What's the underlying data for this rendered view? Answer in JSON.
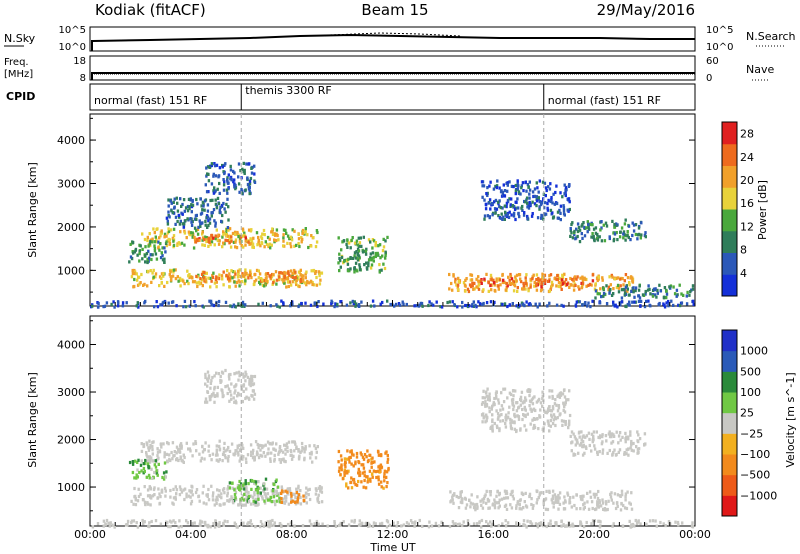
{
  "header": {
    "station": "Kodiak (fitACF)",
    "beam": "Beam 15",
    "date": "29/May/2016"
  },
  "top_panels": {
    "nsky_label": "N.Sky",
    "nsky_ticks": [
      "10^5",
      "10^0"
    ],
    "nsearch_label": "N.Search",
    "nsearch_ticks": [
      "10^5",
      "10^0"
    ],
    "freq_label": [
      "Freq.",
      "[MHz]"
    ],
    "freq_ticks": [
      "18",
      "8"
    ],
    "nave_label": "Nave",
    "nave_ticks": [
      "60",
      "0"
    ],
    "cpid_label": "CPID",
    "cpid_segments": [
      {
        "label": "normal (fast) 151 RF",
        "start_h": 0,
        "end_h": 6
      },
      {
        "label": "themis 3300 RF",
        "start_h": 6,
        "end_h": 18
      },
      {
        "label": "normal (fast) 151 RF",
        "start_h": 18,
        "end_h": 24
      }
    ]
  },
  "colors": {
    "power": [
      "#1430d8",
      "#2b58b8",
      "#2f7d5a",
      "#4aa83c",
      "#e8d23a",
      "#f1a02a",
      "#ee6b1e",
      "#e02020"
    ],
    "velocity": [
      "#e01818",
      "#ee5a18",
      "#f28a1c",
      "#f2b020",
      "#c8c8c4",
      "#70c844",
      "#2a8a3a",
      "#2a5ab8",
      "#2030c8"
    ]
  },
  "chart_data": [
    {
      "type": "heatmap",
      "title": "",
      "ylabel": "Slant Range [km]",
      "xlabel": "",
      "x_range_hours": [
        0,
        24
      ],
      "xlim_labels": [
        "00:00",
        "00:00"
      ],
      "ylim": [
        180,
        4600
      ],
      "y_ticks": [
        1000,
        2000,
        3000,
        4000
      ],
      "colorbar": {
        "label": "Power [dB]",
        "ticks": [
          4,
          8,
          12,
          16,
          20,
          24,
          28
        ],
        "range": [
          0,
          30
        ]
      },
      "regions": [
        {
          "t0": 0.0,
          "t1": 24.0,
          "r0": 190,
          "r1": 330,
          "level": 5
        },
        {
          "t0": 1.6,
          "t1": 9.2,
          "r0": 650,
          "r1": 1050,
          "level": 18
        },
        {
          "t0": 4.0,
          "t1": 8.5,
          "r0": 750,
          "r1": 1000,
          "level": 22
        },
        {
          "t0": 2.0,
          "t1": 9.0,
          "r0": 1550,
          "r1": 2000,
          "level": 17
        },
        {
          "t0": 4.0,
          "t1": 6.5,
          "r0": 1650,
          "r1": 1850,
          "level": 23
        },
        {
          "t0": 1.5,
          "t1": 3.0,
          "r0": 1200,
          "r1": 1700,
          "level": 10
        },
        {
          "t0": 3.0,
          "t1": 5.5,
          "r0": 2000,
          "r1": 2700,
          "level": 7
        },
        {
          "t0": 4.5,
          "t1": 6.5,
          "r0": 2800,
          "r1": 3500,
          "level": 6
        },
        {
          "t0": 9.8,
          "t1": 11.8,
          "r0": 1000,
          "r1": 1800,
          "level": 12
        },
        {
          "t0": 14.2,
          "t1": 21.5,
          "r0": 550,
          "r1": 950,
          "level": 20
        },
        {
          "t0": 15.0,
          "t1": 20.0,
          "r0": 650,
          "r1": 850,
          "level": 24
        },
        {
          "t0": 15.5,
          "t1": 19.0,
          "r0": 2200,
          "r1": 3100,
          "level": 5
        },
        {
          "t0": 19.0,
          "t1": 22.0,
          "r0": 1700,
          "r1": 2200,
          "level": 9
        },
        {
          "t0": 20.0,
          "t1": 24.0,
          "r0": 400,
          "r1": 700,
          "level": 9
        }
      ]
    },
    {
      "type": "heatmap",
      "title": "",
      "ylabel": "Slant Range [km]",
      "xlabel": "Time UT",
      "x_range_hours": [
        0,
        24
      ],
      "x_ticks": [
        "00:00",
        "04:00",
        "08:00",
        "12:00",
        "16:00",
        "20:00",
        "00:00"
      ],
      "ylim": [
        180,
        4600
      ],
      "y_ticks": [
        1000,
        2000,
        3000,
        4000
      ],
      "colorbar": {
        "label": "Velocity [m s^-1]",
        "ticks": [
          -1000,
          -500,
          -100,
          -25,
          25,
          100,
          500,
          1000
        ]
      },
      "regions": [
        {
          "t0": 0.0,
          "t1": 24.0,
          "r0": 190,
          "r1": 330,
          "level": 0
        },
        {
          "t0": 1.6,
          "t1": 9.2,
          "r0": 650,
          "r1": 1050,
          "level": 0
        },
        {
          "t0": 2.0,
          "t1": 9.0,
          "r0": 1550,
          "r1": 2000,
          "level": 0
        },
        {
          "t0": 1.5,
          "t1": 3.0,
          "r0": 1200,
          "r1": 1600,
          "level": 60
        },
        {
          "t0": 5.5,
          "t1": 7.5,
          "r0": 700,
          "r1": 1200,
          "level": 60
        },
        {
          "t0": 7.5,
          "t1": 8.5,
          "r0": 700,
          "r1": 950,
          "level": -150
        },
        {
          "t0": 9.8,
          "t1": 11.8,
          "r0": 1000,
          "r1": 1800,
          "level": -150
        },
        {
          "t0": 14.2,
          "t1": 21.5,
          "r0": 550,
          "r1": 950,
          "level": 0
        },
        {
          "t0": 15.5,
          "t1": 19.0,
          "r0": 2200,
          "r1": 3100,
          "level": 0
        },
        {
          "t0": 19.0,
          "t1": 22.0,
          "r0": 1700,
          "r1": 2200,
          "level": 0
        },
        {
          "t0": 4.5,
          "t1": 6.5,
          "r0": 2800,
          "r1": 3500,
          "level": 0
        }
      ]
    }
  ]
}
